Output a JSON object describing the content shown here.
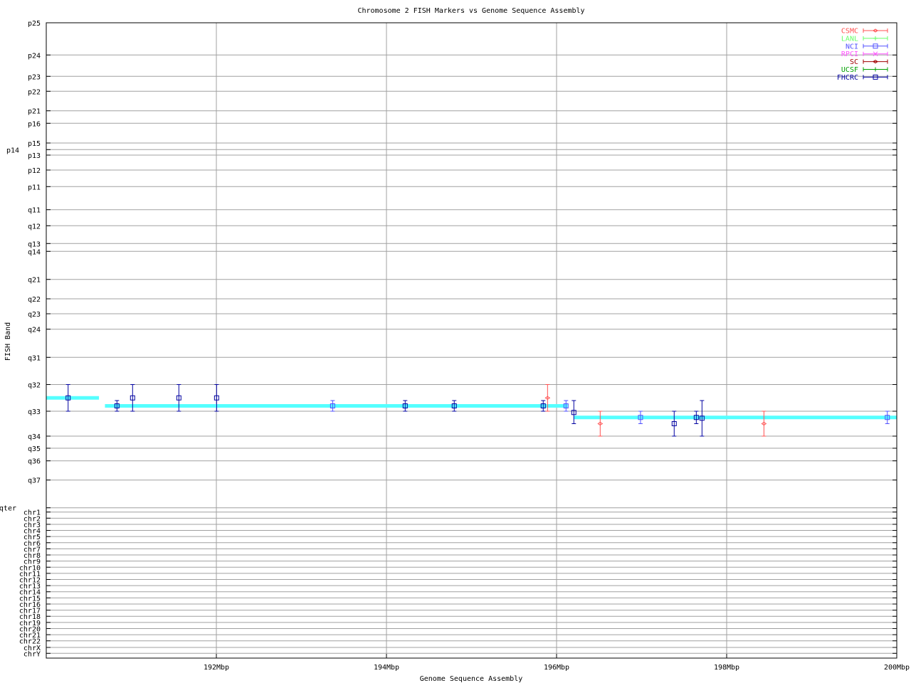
{
  "chart_data": {
    "type": "scatter",
    "title": "Chromosome 2 FISH Markers vs Genome Sequence Assembly",
    "xlabel": "Genome Sequence Assembly",
    "ylabel": "FISH Band",
    "xlim": [
      190,
      200
    ],
    "x_unit": "Mbp",
    "x_ticks": [
      192,
      194,
      196,
      198,
      200
    ],
    "x_tick_labels": [
      "192Mbp",
      "194Mbp",
      "196Mbp",
      "198Mbp",
      "200Mbp"
    ],
    "y_scale": "ordinal band index (0 = p25, top), fractional values lie between bands",
    "y_tick_labels": [
      "p25",
      "p24",
      "p23",
      "p22",
      "p21",
      "p16",
      "p15",
      "p14",
      "p13",
      "p12",
      "p11",
      "q11",
      "q12",
      "q13",
      "q14",
      "q21",
      "q22",
      "q23",
      "q24",
      "q31",
      "q32",
      "q33",
      "q34",
      "q35",
      "q36",
      "q37",
      "qter",
      "chr1",
      "chr2",
      "chr3",
      "chr4",
      "chr5",
      "chr6",
      "chr7",
      "chr8",
      "chr9",
      "chr10",
      "chr11",
      "chr12",
      "chr13",
      "chr14",
      "chr15",
      "chr16",
      "chr17",
      "chr18",
      "chr19",
      "chr20",
      "chr21",
      "chr22",
      "chrX",
      "chrY"
    ],
    "grid": true,
    "legend_placement": "top-right",
    "assembly_segments": {
      "color": "#55ffff",
      "segments": [
        {
          "x": [
            190.0,
            190.62
          ],
          "y": 20.5
        },
        {
          "x": [
            190.69,
            196.13
          ],
          "y": 20.8
        },
        {
          "x": [
            196.2,
            200.0
          ],
          "y": 21.25
        }
      ]
    },
    "series": [
      {
        "name": "CSMC",
        "color": "#ff5050",
        "marker": "diamond",
        "points": [
          {
            "x": 195.894,
            "y": 20.5,
            "ylow": 20,
            "yhigh": 21
          },
          {
            "x": 196.513,
            "y": 21.5,
            "ylow": 21,
            "yhigh": 22
          },
          {
            "x": 198.438,
            "y": 21.5,
            "ylow": 21,
            "yhigh": 22
          }
        ]
      },
      {
        "name": "LANL",
        "color": "#66ff66",
        "marker": "plus",
        "points": []
      },
      {
        "name": "NCI",
        "color": "#5050ff",
        "marker": "square",
        "points": [
          {
            "x": 193.367,
            "y": 20.8,
            "ylow": 20.6,
            "yhigh": 21
          },
          {
            "x": 196.111,
            "y": 20.8,
            "ylow": 20.6,
            "yhigh": 21
          },
          {
            "x": 196.987,
            "y": 21.25,
            "ylow": 21,
            "yhigh": 21.5
          },
          {
            "x": 199.889,
            "y": 21.25,
            "ylow": 21,
            "yhigh": 21.5
          }
        ]
      },
      {
        "name": "RPCI",
        "color": "#ff50ff",
        "marker": "cross",
        "points": []
      },
      {
        "name": "SC",
        "color": "#a00000",
        "marker": "diamond",
        "points": []
      },
      {
        "name": "UCSF",
        "color": "#00a000",
        "marker": "plus",
        "points": []
      },
      {
        "name": "FHCRC",
        "color": "#0000a0",
        "marker": "square",
        "points": [
          {
            "x": 190.257,
            "y": 20.5,
            "ylow": 20,
            "yhigh": 21
          },
          {
            "x": 190.831,
            "y": 20.8,
            "ylow": 20.6,
            "yhigh": 21
          },
          {
            "x": 191.015,
            "y": 20.5,
            "ylow": 20,
            "yhigh": 21
          },
          {
            "x": 191.559,
            "y": 20.5,
            "ylow": 20,
            "yhigh": 21
          },
          {
            "x": 192.003,
            "y": 20.5,
            "ylow": 20,
            "yhigh": 21
          },
          {
            "x": 194.22,
            "y": 20.8,
            "ylow": 20.6,
            "yhigh": 21
          },
          {
            "x": 194.797,
            "y": 20.8,
            "ylow": 20.6,
            "yhigh": 21
          },
          {
            "x": 195.843,
            "y": 20.8,
            "ylow": 20.6,
            "yhigh": 21
          },
          {
            "x": 196.203,
            "y": 21.05,
            "ylow": 20.6,
            "yhigh": 21.5
          },
          {
            "x": 197.383,
            "y": 21.5,
            "ylow": 21,
            "yhigh": 22
          },
          {
            "x": 197.643,
            "y": 21.25,
            "ylow": 21,
            "yhigh": 21.5
          },
          {
            "x": 197.71,
            "y": 21.28,
            "ylow": 20.6,
            "yhigh": 22
          }
        ]
      }
    ]
  }
}
